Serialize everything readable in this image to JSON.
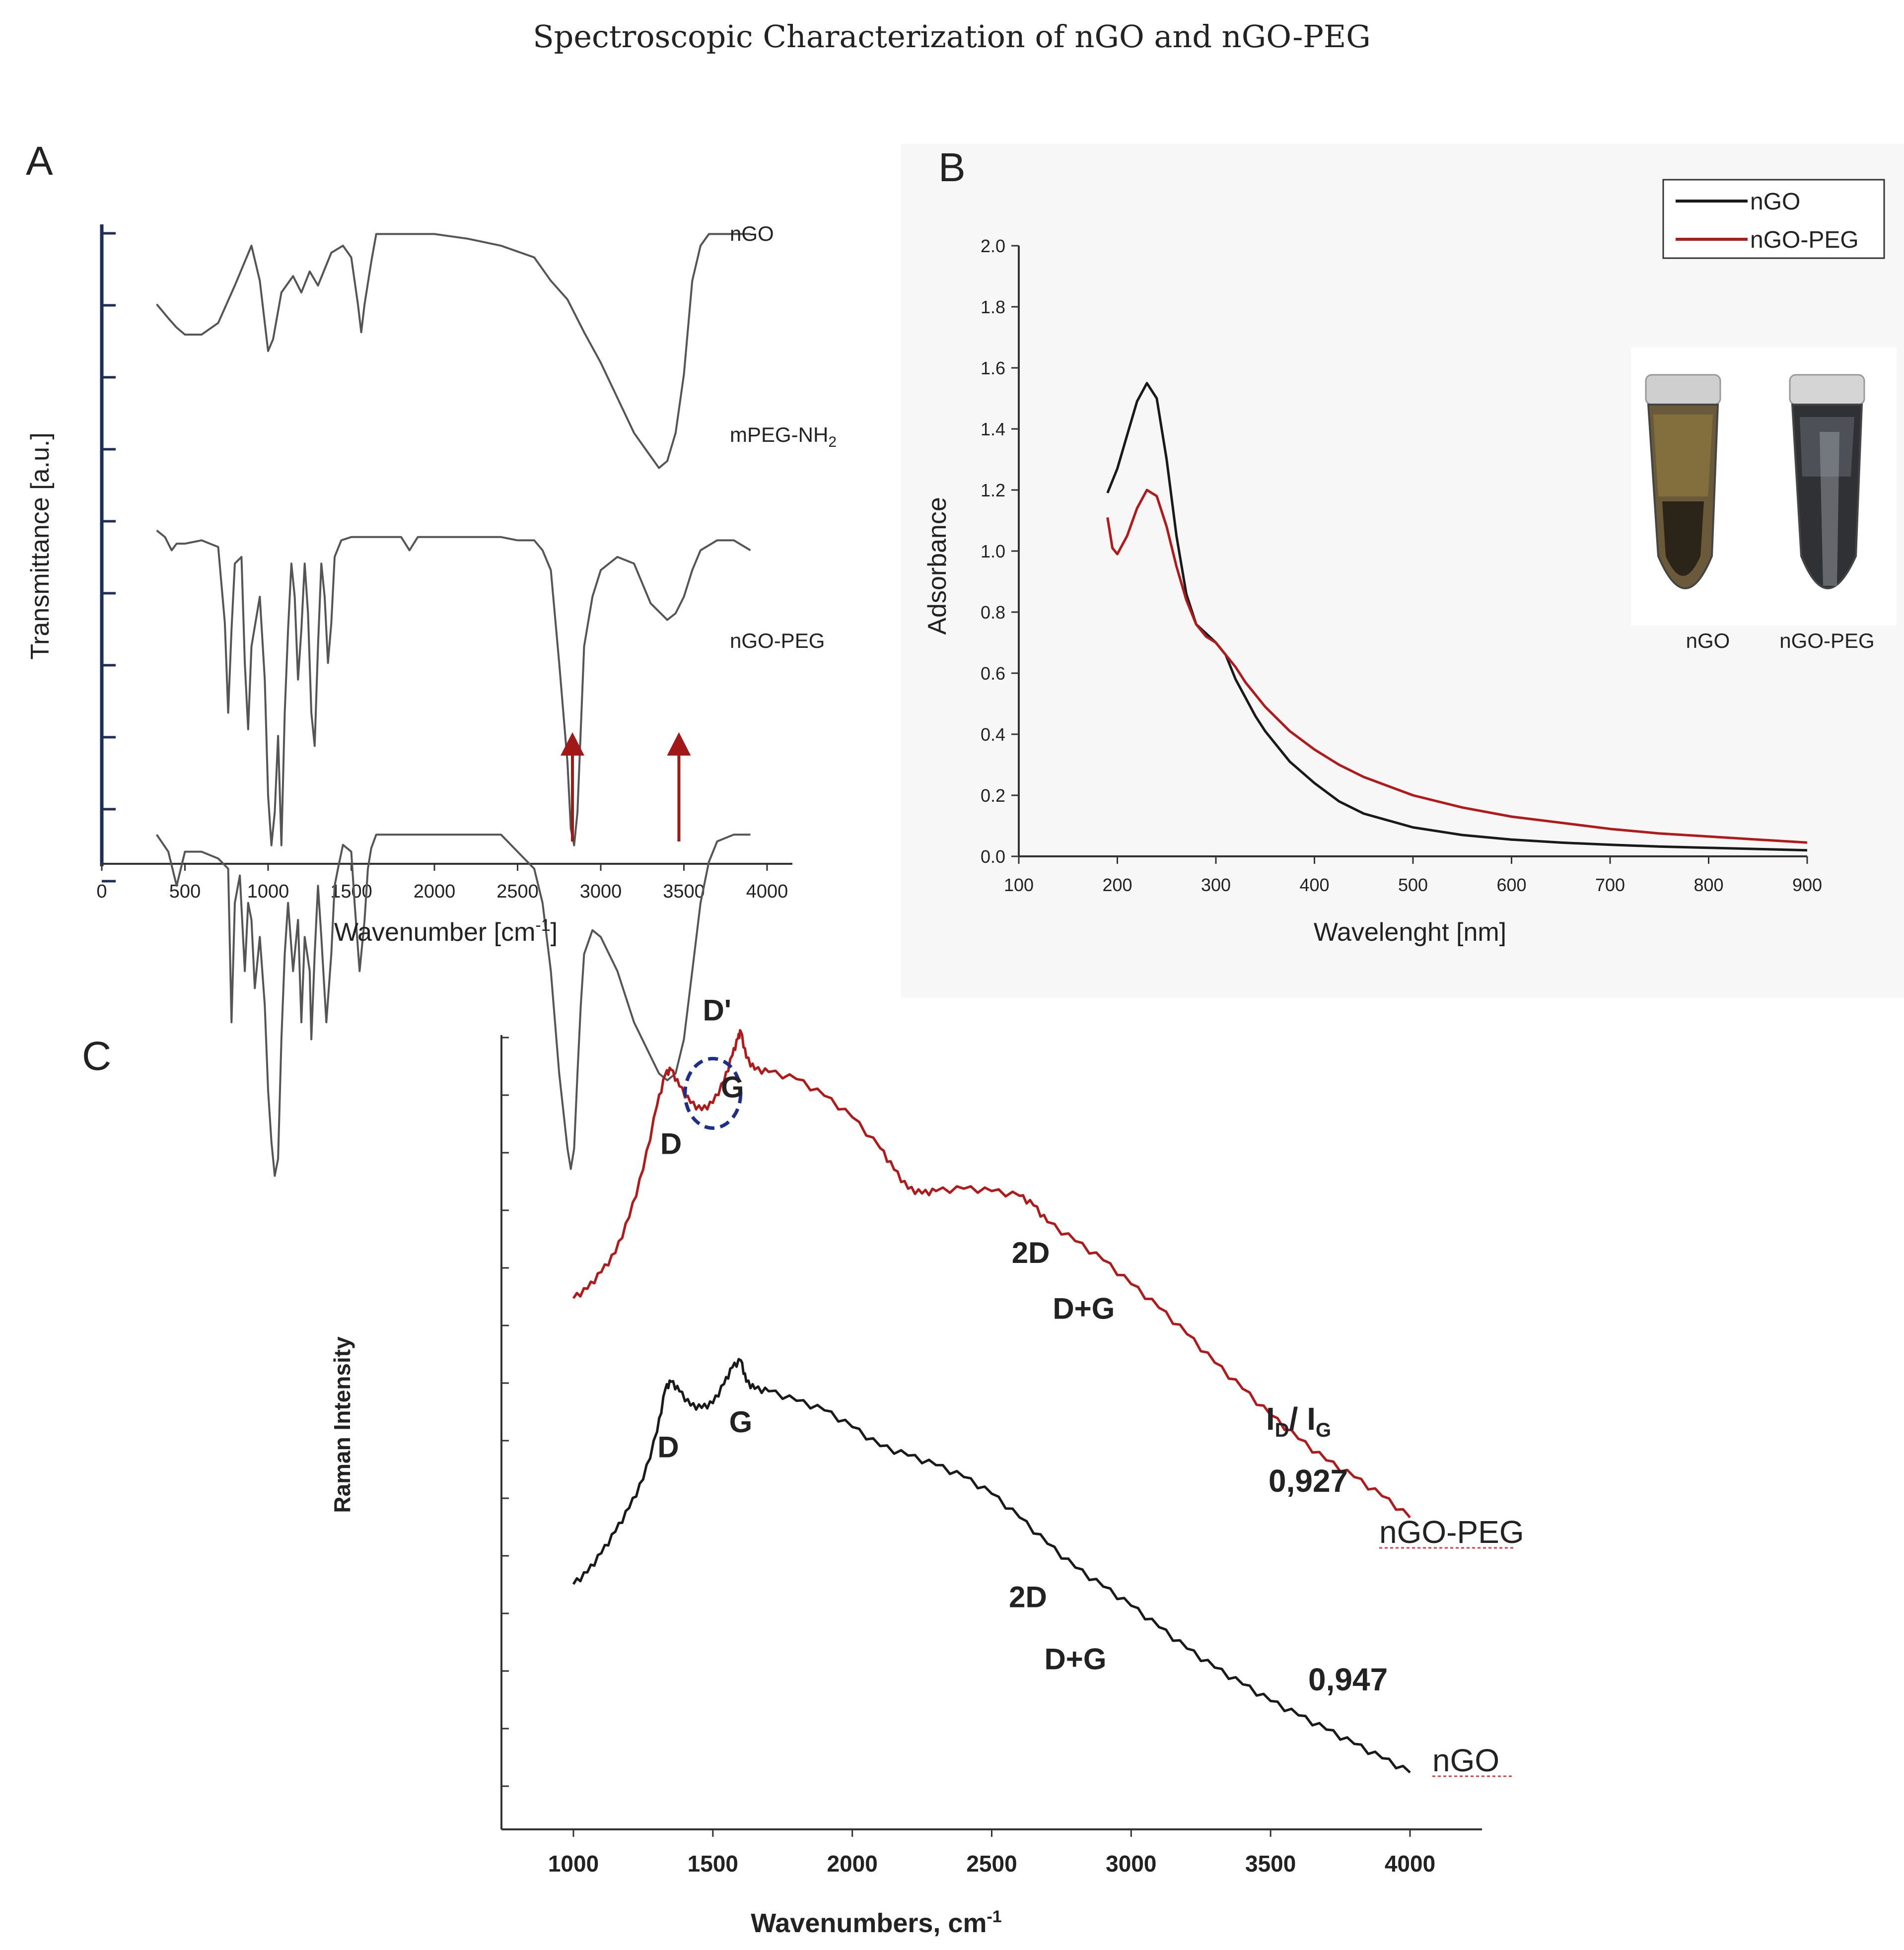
{
  "figure_title": "Spectroscopic Characterization of nGO and nGO-PEG",
  "colors": {
    "black": "#1a1a1a",
    "red": "#b01a1a",
    "grey": "#555555",
    "arrow": "#a01818",
    "circle": "#1c2f8a"
  },
  "panels": {
    "a": "A",
    "b": "B",
    "c": "C"
  },
  "chart_data": [
    {
      "panel": "A",
      "type": "line",
      "title": "",
      "xlabel": "Wavenumber [cm",
      "xlabel_sup": "-1",
      "xlabel_end": "]",
      "ylabel": "Transmittance [a.u.]",
      "xlim": [
        0,
        4000
      ],
      "x_ticks": [
        0,
        500,
        1000,
        1500,
        2000,
        2500,
        3000,
        3500,
        4000
      ],
      "x_tick_labels": [
        "0",
        "500",
        "1000",
        "1500",
        "2000",
        "2500",
        "3000",
        "3500",
        "4000"
      ],
      "series": [
        {
          "name": "nGO",
          "label": "nGO",
          "baseline": 0.12,
          "depth": 0.12,
          "x": [
            330,
            400,
            450,
            500,
            600,
            700,
            800,
            900,
            950,
            1000,
            1030,
            1080,
            1150,
            1200,
            1250,
            1300,
            1380,
            1450,
            1500,
            1540,
            1560,
            1580,
            1620,
            1650,
            1720,
            1800,
            1900,
            2000,
            2200,
            2400,
            2600,
            2700,
            2800,
            2900,
            3000,
            3100,
            3200,
            3300,
            3350,
            3400,
            3450,
            3500,
            3550,
            3600,
            3650,
            3700,
            3800,
            3900
          ],
          "y": [
            0.3,
            0.36,
            0.4,
            0.43,
            0.43,
            0.38,
            0.22,
            0.05,
            0.2,
            0.5,
            0.45,
            0.25,
            0.18,
            0.25,
            0.16,
            0.22,
            0.08,
            0.05,
            0.1,
            0.3,
            0.42,
            0.3,
            0.12,
            0.0,
            0.0,
            0.0,
            0.0,
            0.0,
            0.02,
            0.05,
            0.1,
            0.2,
            0.28,
            0.42,
            0.55,
            0.7,
            0.85,
            0.95,
            1.0,
            0.97,
            0.85,
            0.6,
            0.2,
            0.05,
            0.0,
            0.0,
            0.0,
            0.0
          ]
        },
        {
          "name": "mPEG-NH2",
          "label_main": "mPEG-NH",
          "label_sub": "2",
          "baseline": 0.272,
          "depth": 0.17,
          "x": [
            330,
            380,
            420,
            450,
            500,
            600,
            700,
            740,
            760,
            780,
            800,
            840,
            860,
            880,
            900,
            950,
            980,
            1000,
            1020,
            1040,
            1060,
            1080,
            1100,
            1120,
            1140,
            1160,
            1180,
            1200,
            1220,
            1240,
            1260,
            1280,
            1300,
            1320,
            1340,
            1360,
            1380,
            1400,
            1440,
            1500,
            1600,
            1800,
            1850,
            1900,
            2000,
            2200,
            2400,
            2500,
            2600,
            2650,
            2700,
            2750,
            2800,
            2820,
            2840,
            2860,
            2880,
            2900,
            2950,
            3000,
            3100,
            3200,
            3300,
            3400,
            3450,
            3500,
            3550,
            3600,
            3700,
            3800,
            3900
          ],
          "y": [
            0.0,
            0.02,
            0.06,
            0.04,
            0.04,
            0.03,
            0.05,
            0.28,
            0.55,
            0.3,
            0.1,
            0.08,
            0.4,
            0.6,
            0.35,
            0.2,
            0.45,
            0.8,
            0.95,
            0.85,
            0.62,
            0.95,
            0.55,
            0.3,
            0.1,
            0.2,
            0.45,
            0.3,
            0.1,
            0.25,
            0.55,
            0.65,
            0.35,
            0.1,
            0.2,
            0.4,
            0.28,
            0.08,
            0.03,
            0.02,
            0.02,
            0.02,
            0.06,
            0.02,
            0.02,
            0.02,
            0.02,
            0.03,
            0.03,
            0.06,
            0.12,
            0.4,
            0.7,
            0.9,
            0.95,
            0.85,
            0.6,
            0.35,
            0.2,
            0.12,
            0.08,
            0.1,
            0.22,
            0.27,
            0.25,
            0.2,
            0.12,
            0.06,
            0.03,
            0.03,
            0.06
          ]
        },
        {
          "name": "nGO-PEG",
          "label": "nGO-PEG",
          "baseline": 0.428,
          "depth": 0.175,
          "x": [
            330,
            400,
            450,
            500,
            600,
            700,
            760,
            780,
            800,
            830,
            860,
            880,
            900,
            920,
            950,
            980,
            1000,
            1020,
            1040,
            1060,
            1080,
            1100,
            1120,
            1150,
            1180,
            1200,
            1220,
            1250,
            1260,
            1280,
            1300,
            1320,
            1350,
            1380,
            1400,
            1420,
            1450,
            1500,
            1520,
            1550,
            1580,
            1600,
            1620,
            1650,
            1700,
            1800,
            1900,
            2000,
            2200,
            2400,
            2500,
            2600,
            2650,
            2700,
            2750,
            2800,
            2820,
            2840,
            2860,
            2880,
            2900,
            2950,
            3000,
            3100,
            3200,
            3300,
            3350,
            3400,
            3450,
            3500,
            3550,
            3600,
            3650,
            3700,
            3800,
            3900
          ],
          "y": [
            0.0,
            0.05,
            0.15,
            0.05,
            0.05,
            0.07,
            0.1,
            0.55,
            0.2,
            0.12,
            0.4,
            0.2,
            0.25,
            0.45,
            0.3,
            0.5,
            0.75,
            0.9,
            1.0,
            0.95,
            0.6,
            0.35,
            0.2,
            0.4,
            0.25,
            0.55,
            0.3,
            0.4,
            0.6,
            0.35,
            0.15,
            0.3,
            0.55,
            0.35,
            0.15,
            0.1,
            0.03,
            0.05,
            0.2,
            0.4,
            0.25,
            0.1,
            0.04,
            0.0,
            0.0,
            0.0,
            0.0,
            0.0,
            0.0,
            0.0,
            0.05,
            0.1,
            0.2,
            0.4,
            0.7,
            0.92,
            0.98,
            0.92,
            0.7,
            0.5,
            0.35,
            0.28,
            0.3,
            0.4,
            0.55,
            0.65,
            0.7,
            0.72,
            0.7,
            0.6,
            0.4,
            0.2,
            0.08,
            0.02,
            0.0,
            0.0
          ]
        }
      ],
      "arrows_at_x": [
        2830,
        3470
      ]
    },
    {
      "panel": "B",
      "type": "line",
      "title": "",
      "xlabel": "Wavelenght [nm]",
      "ylabel": "Adsorbance",
      "xlim": [
        100,
        900
      ],
      "ylim": [
        0,
        2.0
      ],
      "x_ticks": [
        100,
        200,
        300,
        400,
        500,
        600,
        700,
        800,
        900
      ],
      "x_tick_labels": [
        "100",
        "200",
        "300",
        "400",
        "500",
        "600",
        "700",
        "800",
        "900"
      ],
      "y_ticks": [
        0,
        0.2,
        0.4,
        0.6,
        0.8,
        1.0,
        1.2,
        1.4,
        1.6,
        1.8,
        2.0
      ],
      "y_tick_labels": [
        "0.0",
        "0.2",
        "0.4",
        "0.6",
        "0.8",
        "1.0",
        "1.2",
        "1.4",
        "1.6",
        "1.8",
        "2.0"
      ],
      "legend_position": "top-right",
      "series": [
        {
          "name": "nGO",
          "color_key": "black",
          "x": [
            190,
            200,
            210,
            220,
            230,
            240,
            250,
            260,
            270,
            280,
            290,
            300,
            310,
            320,
            330,
            340,
            350,
            375,
            400,
            425,
            450,
            500,
            550,
            600,
            650,
            700,
            750,
            800,
            850,
            900
          ],
          "y": [
            1.19,
            1.27,
            1.38,
            1.49,
            1.55,
            1.5,
            1.3,
            1.05,
            0.86,
            0.76,
            0.73,
            0.7,
            0.66,
            0.58,
            0.52,
            0.46,
            0.41,
            0.31,
            0.24,
            0.18,
            0.14,
            0.095,
            0.07,
            0.055,
            0.045,
            0.038,
            0.032,
            0.028,
            0.024,
            0.02
          ]
        },
        {
          "name": "nGO-PEG",
          "color_key": "red",
          "x": [
            190,
            195,
            200,
            210,
            220,
            230,
            240,
            250,
            260,
            270,
            280,
            290,
            300,
            310,
            320,
            330,
            340,
            350,
            375,
            400,
            425,
            450,
            500,
            550,
            600,
            650,
            700,
            750,
            800,
            850,
            900
          ],
          "y": [
            1.11,
            1.01,
            0.99,
            1.05,
            1.14,
            1.2,
            1.18,
            1.08,
            0.95,
            0.84,
            0.76,
            0.72,
            0.7,
            0.66,
            0.62,
            0.57,
            0.53,
            0.49,
            0.41,
            0.35,
            0.3,
            0.26,
            0.2,
            0.16,
            0.13,
            0.11,
            0.09,
            0.075,
            0.065,
            0.055,
            0.045
          ]
        }
      ],
      "inset": {
        "labels": [
          "nGO",
          "nGO-PEG"
        ]
      }
    },
    {
      "panel": "C",
      "type": "line",
      "title": "",
      "xlabel": "Wavenumbers, cm",
      "xlabel_sup": "-1",
      "ylabel": "Raman Intensity",
      "xlim": [
        750,
        4250
      ],
      "x_ticks": [
        1000,
        1500,
        2000,
        2500,
        3000,
        3500,
        4000
      ],
      "x_tick_labels": [
        "1000",
        "1500",
        "2000",
        "2500",
        "3000",
        "3500",
        "4000"
      ],
      "y_minor_tick_count": 14,
      "series": [
        {
          "name": "nGO-PEG",
          "label": "nGO-PEG",
          "color_key": "red",
          "x": [
            1000,
            1050,
            1100,
            1150,
            1200,
            1250,
            1300,
            1330,
            1350,
            1380,
            1420,
            1460,
            1500,
            1540,
            1570,
            1590,
            1600,
            1620,
            1650,
            1700,
            1800,
            1900,
            2000,
            2100,
            2150,
            2200,
            2250,
            2300,
            2400,
            2500,
            2600,
            2650,
            2700,
            2800,
            2900,
            3000,
            3100,
            3200,
            3300,
            3400,
            3500,
            3600,
            3700,
            3800,
            3900,
            4000
          ],
          "y": [
            2.01,
            2.05,
            2.12,
            2.2,
            2.35,
            2.55,
            2.82,
            2.95,
            2.97,
            2.9,
            2.83,
            2.8,
            2.83,
            2.92,
            3.03,
            3.1,
            3.13,
            3.02,
            2.97,
            2.96,
            2.93,
            2.86,
            2.77,
            2.64,
            2.55,
            2.47,
            2.45,
            2.46,
            2.47,
            2.46,
            2.44,
            2.4,
            2.33,
            2.25,
            2.17,
            2.07,
            1.97,
            1.86,
            1.74,
            1.63,
            1.52,
            1.42,
            1.33,
            1.26,
            1.18,
            1.09
          ]
        },
        {
          "name": "nGO",
          "label": "nGO",
          "color_key": "black",
          "x": [
            1000,
            1050,
            1100,
            1150,
            1200,
            1250,
            1300,
            1330,
            1350,
            1380,
            1420,
            1460,
            1500,
            1540,
            1570,
            1600,
            1620,
            1650,
            1700,
            1800,
            1900,
            2000,
            2100,
            2200,
            2300,
            2400,
            2500,
            2600,
            2700,
            2800,
            2900,
            3000,
            3100,
            3200,
            3300,
            3400,
            3500,
            3600,
            3700,
            3800,
            3900,
            4000
          ],
          "y": [
            0.81,
            0.86,
            0.94,
            1.03,
            1.13,
            1.25,
            1.45,
            1.63,
            1.66,
            1.62,
            1.56,
            1.55,
            1.57,
            1.65,
            1.72,
            1.75,
            1.66,
            1.63,
            1.62,
            1.58,
            1.54,
            1.47,
            1.39,
            1.35,
            1.31,
            1.26,
            1.19,
            1.09,
            0.98,
            0.88,
            0.8,
            0.72,
            0.63,
            0.54,
            0.46,
            0.39,
            0.32,
            0.26,
            0.2,
            0.14,
            0.08,
            0.02
          ]
        }
      ],
      "peak_labels": [
        {
          "series": "nGO-PEG",
          "text": "D'",
          "x": 1515
        },
        {
          "series": "nGO-PEG",
          "text": "G",
          "x": 1570
        },
        {
          "series": "nGO-PEG",
          "text": "D",
          "x": 1350
        },
        {
          "series": "nGO-PEG",
          "text": "2D",
          "x": 2640
        },
        {
          "series": "nGO-PEG",
          "text": "D+G",
          "x": 2830
        },
        {
          "series": "nGO",
          "text": "D",
          "x": 1340
        },
        {
          "series": "nGO",
          "text": "G",
          "x": 1600
        },
        {
          "series": "nGO",
          "text": "2D",
          "x": 2630
        },
        {
          "series": "nGO",
          "text": "D+G",
          "x": 2800
        }
      ],
      "ratio_heading": {
        "main_i": "I",
        "sub_d": "D",
        "slash": "/ I",
        "sub_g": "G"
      },
      "ratios": [
        {
          "series": "nGO-PEG",
          "value": "0,927"
        },
        {
          "series": "nGO",
          "value": "0,947"
        }
      ]
    }
  ]
}
